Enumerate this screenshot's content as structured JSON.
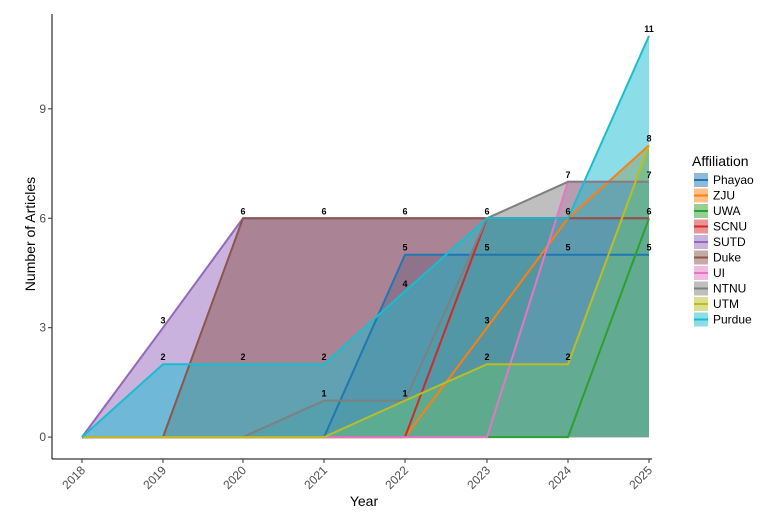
{
  "chart_data": {
    "type": "area",
    "x": [
      "2018",
      "2019",
      "2020",
      "2021",
      "2022",
      "2023",
      "2024",
      "2025"
    ],
    "xlabel": "Year",
    "ylabel": "Number of Articles",
    "ylim": [
      -0.6,
      11.6
    ],
    "yticks": [
      0,
      3,
      6,
      9
    ],
    "grid": false,
    "legend": {
      "title": "Affiliation",
      "position": "right"
    },
    "series": [
      {
        "name": "Phayao",
        "color": "#1f77b4",
        "values": [
          0,
          0,
          0,
          0,
          5,
          5,
          5,
          5
        ]
      },
      {
        "name": "ZJU",
        "color": "#ff7f0e",
        "values": [
          0,
          0,
          0,
          0,
          0,
          3,
          6,
          8
        ]
      },
      {
        "name": "UWA",
        "color": "#2ca02c",
        "values": [
          0,
          0,
          0,
          0,
          0,
          0,
          0,
          6
        ]
      },
      {
        "name": "SCNU",
        "color": "#d62728",
        "values": [
          0,
          0,
          0,
          0,
          0,
          6,
          6,
          6
        ]
      },
      {
        "name": "SUTD",
        "color": "#9467bd",
        "values": [
          0,
          3,
          6,
          6,
          6,
          6,
          6,
          6
        ]
      },
      {
        "name": "Duke",
        "color": "#8c564b",
        "values": [
          0,
          0,
          6,
          6,
          6,
          6,
          6,
          6
        ]
      },
      {
        "name": "UI",
        "color": "#e377c2",
        "values": [
          0,
          0,
          0,
          0,
          0,
          0,
          7,
          7
        ]
      },
      {
        "name": "NTNU",
        "color": "#7f7f7f",
        "values": [
          0,
          0,
          0,
          1,
          1,
          6,
          7,
          7
        ]
      },
      {
        "name": "UTM",
        "color": "#bcbd22",
        "values": [
          0,
          0,
          0,
          0,
          1,
          2,
          2,
          8
        ]
      },
      {
        "name": "Purdue",
        "color": "#17becf",
        "values": [
          0,
          2,
          2,
          2,
          4,
          6,
          6,
          11
        ]
      }
    ],
    "annotations": [
      {
        "text": "3",
        "x": "2019",
        "y": 3
      },
      {
        "text": "2",
        "x": "2019",
        "y": 2
      },
      {
        "text": "6",
        "x": "2020",
        "y": 6
      },
      {
        "text": "2",
        "x": "2020",
        "y": 2
      },
      {
        "text": "6",
        "x": "2021",
        "y": 6
      },
      {
        "text": "2",
        "x": "2021",
        "y": 2
      },
      {
        "text": "1",
        "x": "2021",
        "y": 1
      },
      {
        "text": "6",
        "x": "2022",
        "y": 6
      },
      {
        "text": "5",
        "x": "2022",
        "y": 5
      },
      {
        "text": "4",
        "x": "2022",
        "y": 4
      },
      {
        "text": "1",
        "x": "2022",
        "y": 1
      },
      {
        "text": "6",
        "x": "2023",
        "y": 6
      },
      {
        "text": "5",
        "x": "2023",
        "y": 5
      },
      {
        "text": "3",
        "x": "2023",
        "y": 3
      },
      {
        "text": "2",
        "x": "2023",
        "y": 2
      },
      {
        "text": "7",
        "x": "2024",
        "y": 7
      },
      {
        "text": "6",
        "x": "2024",
        "y": 6
      },
      {
        "text": "5",
        "x": "2024",
        "y": 5
      },
      {
        "text": "2",
        "x": "2024",
        "y": 2
      },
      {
        "text": "11",
        "x": "2025",
        "y": 11
      },
      {
        "text": "8",
        "x": "2025",
        "y": 8
      },
      {
        "text": "7",
        "x": "2025",
        "y": 7
      },
      {
        "text": "6",
        "x": "2025",
        "y": 6
      },
      {
        "text": "5",
        "x": "2025",
        "y": 5
      }
    ]
  }
}
